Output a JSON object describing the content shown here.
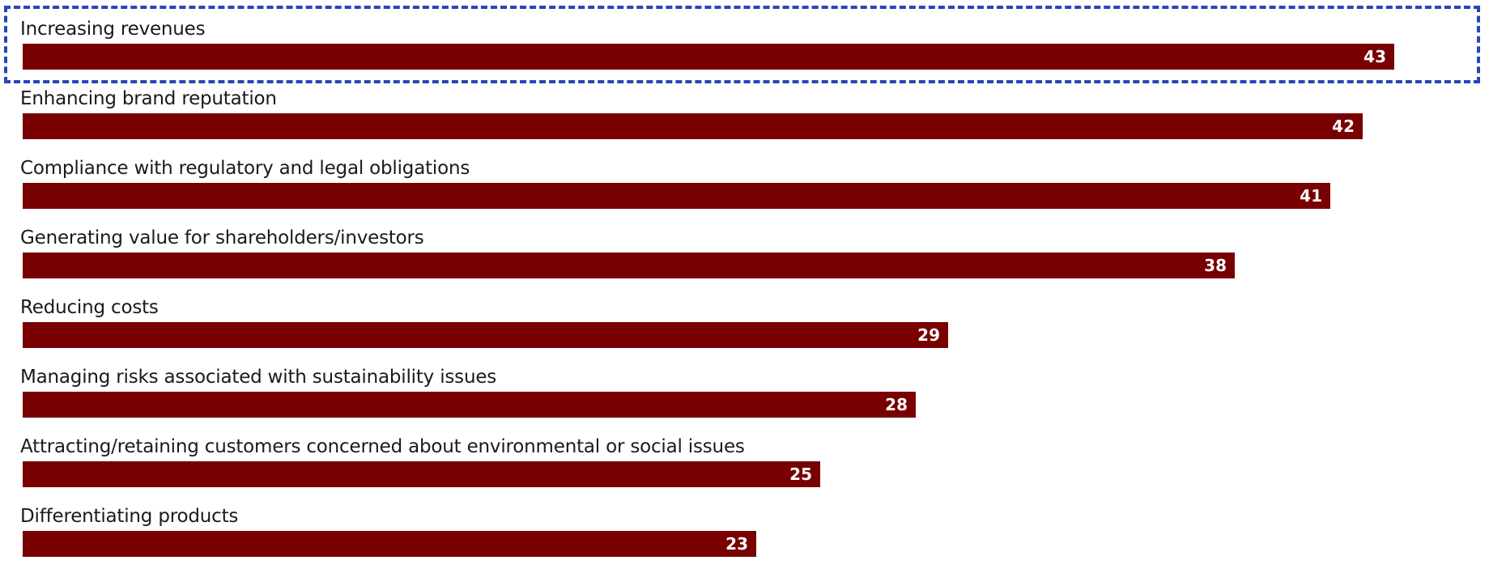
{
  "chart_data": {
    "type": "bar",
    "orientation": "horizontal",
    "categories": [
      "Increasing revenues",
      "Enhancing brand reputation",
      "Compliance with regulatory and legal obligations",
      "Generating value for shareholders/investors",
      "Reducing costs",
      "Managing risks associated with sustainability issues",
      "Attracting/retaining customers concerned about environmental or social issues",
      "Differentiating products"
    ],
    "values": [
      43,
      42,
      41,
      38,
      29,
      28,
      25,
      23
    ],
    "title": "",
    "xlabel": "",
    "ylabel": "",
    "xlim": [
      0,
      45
    ],
    "grid": false,
    "data_labels": "inside-end",
    "highlighted_category": "Increasing revenues"
  },
  "colors": {
    "bar": "#780000",
    "value_text": "#ffffff",
    "label_text": "#1a1a1a",
    "highlight": "#2746b8"
  }
}
